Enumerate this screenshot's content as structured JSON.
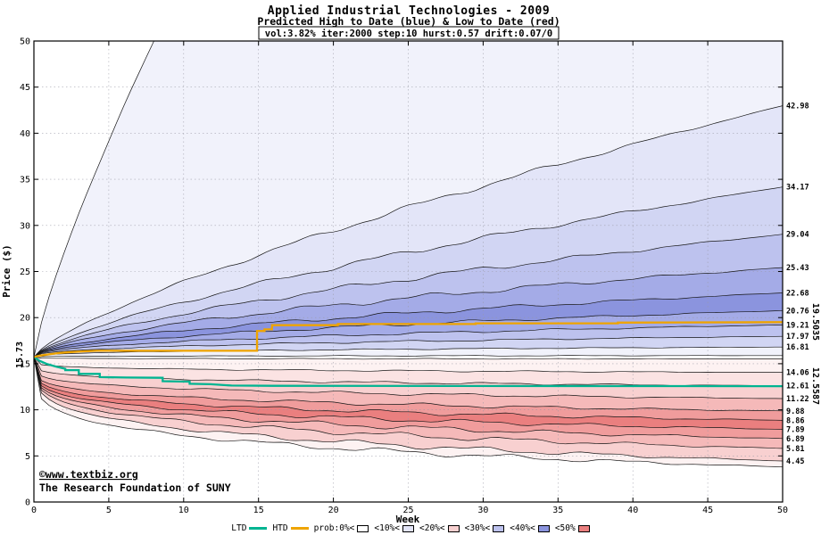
{
  "chart_data": {
    "type": "area",
    "title": "Applied Industrial Technologies - 2009",
    "subtitle": "Predicted High to Date (blue) & Low to Date (red)",
    "params": "vol:3.82% iter:2000 step:10 hurst:0.57 drift:0.07/0",
    "xlabel": "Week",
    "ylabel": "Price ($)",
    "xlim": [
      0,
      50
    ],
    "ylim": [
      0,
      50
    ],
    "x_ticks": [
      0,
      5,
      10,
      15,
      20,
      25,
      30,
      35,
      40,
      45,
      50
    ],
    "y_ticks": [
      0,
      5,
      10,
      15,
      20,
      25,
      30,
      35,
      40,
      45,
      50
    ],
    "grid": true,
    "start_price": 15.73,
    "start_label": "15.73",
    "high_percentiles": {
      "description": "high-to-date percentile boundary curves, week-50 end values, top to bottom",
      "ends": [
        42.98,
        34.17,
        29.04,
        25.43,
        22.68,
        20.76,
        19.21,
        17.97,
        16.81
      ]
    },
    "low_percentiles": {
      "description": "low-to-date percentile boundary curves, week-50 end values, top to bottom",
      "ends": [
        14.06,
        12.61,
        11.22,
        9.88,
        8.86,
        7.89,
        6.89,
        5.81,
        4.45
      ]
    },
    "htd_line": {
      "name": "HTD",
      "color": "#efa400",
      "final_value": 19.5035,
      "final_label": "19.5035",
      "points": [
        [
          0,
          15.73
        ],
        [
          0.4,
          15.88
        ],
        [
          1,
          16.02
        ],
        [
          1.7,
          16.16
        ],
        [
          2.5,
          16.27
        ],
        [
          3.4,
          16.34
        ],
        [
          4.2,
          16.4
        ],
        [
          14.9,
          16.4
        ],
        [
          14.9,
          18.55
        ],
        [
          15.4,
          18.55
        ],
        [
          15.4,
          18.72
        ],
        [
          15.9,
          18.72
        ],
        [
          15.9,
          19.18
        ],
        [
          20.3,
          19.18
        ],
        [
          20.3,
          19.3
        ],
        [
          29.5,
          19.3
        ],
        [
          29.5,
          19.38
        ],
        [
          39,
          19.38
        ],
        [
          39,
          19.46
        ],
        [
          50,
          19.5035
        ]
      ]
    },
    "ltd_line": {
      "name": "LTD",
      "color": "#00b491",
      "final_value": 12.5587,
      "final_label": "12.5587",
      "points": [
        [
          0,
          15.73
        ],
        [
          0.4,
          15.3
        ],
        [
          0.9,
          14.95
        ],
        [
          1.5,
          14.68
        ],
        [
          2.1,
          14.45
        ],
        [
          2.1,
          14.3
        ],
        [
          3,
          14.3
        ],
        [
          3,
          13.9
        ],
        [
          4.4,
          13.9
        ],
        [
          4.4,
          13.55
        ],
        [
          6.2,
          13.5
        ],
        [
          8.6,
          13.47
        ],
        [
          8.6,
          13.1
        ],
        [
          10.4,
          13.06
        ],
        [
          10.4,
          12.82
        ],
        [
          11.8,
          12.78
        ],
        [
          13.2,
          12.63
        ],
        [
          16,
          12.6
        ],
        [
          50,
          12.5587
        ]
      ]
    },
    "band_colors_blue": [
      "#f1f2fb",
      "#e3e5f8",
      "#d1d5f3",
      "#bdc2ee",
      "#a4abe7",
      "#8b94de"
    ],
    "band_colors_red": [
      "#fdf2f2",
      "#fbe3e3",
      "#f8d0d0",
      "#f5b9b9",
      "#f09c9c",
      "#ea7f7f"
    ],
    "band_shade_order": [
      0,
      1,
      2,
      3,
      4,
      5,
      4,
      3,
      2,
      0
    ],
    "render_hints": {
      "high_outer_end": 163.7,
      "high_outer_exp": 0.8,
      "high_inner_end": 15.88,
      "low_inner_end": 15.52,
      "low_outer_end": 3.8
    }
  },
  "watermark": {
    "line1": "©www.textbiz.org",
    "line2": "The Research Foundation of SUNY",
    "color1": "#4040cc",
    "color2": "#202088"
  },
  "legend": {
    "items": [
      {
        "label": "LTD",
        "type": "line",
        "color": "#00b491"
      },
      {
        "label": "HTD",
        "type": "line",
        "color": "#efa400"
      },
      {
        "label": "prob:0%<",
        "type": "box",
        "color": "#ffffff"
      },
      {
        "label": "<10%<",
        "type": "box",
        "color": "#e3e5f8"
      },
      {
        "label": "<20%<",
        "type": "box",
        "color": "#f8d0d0"
      },
      {
        "label": "<30%<",
        "type": "box",
        "color": "#bdc2ee"
      },
      {
        "label": "<40%<",
        "type": "box",
        "color": "#8b94de"
      },
      {
        "label": "<50%",
        "type": "box",
        "color": "#ea7f7f"
      }
    ]
  }
}
